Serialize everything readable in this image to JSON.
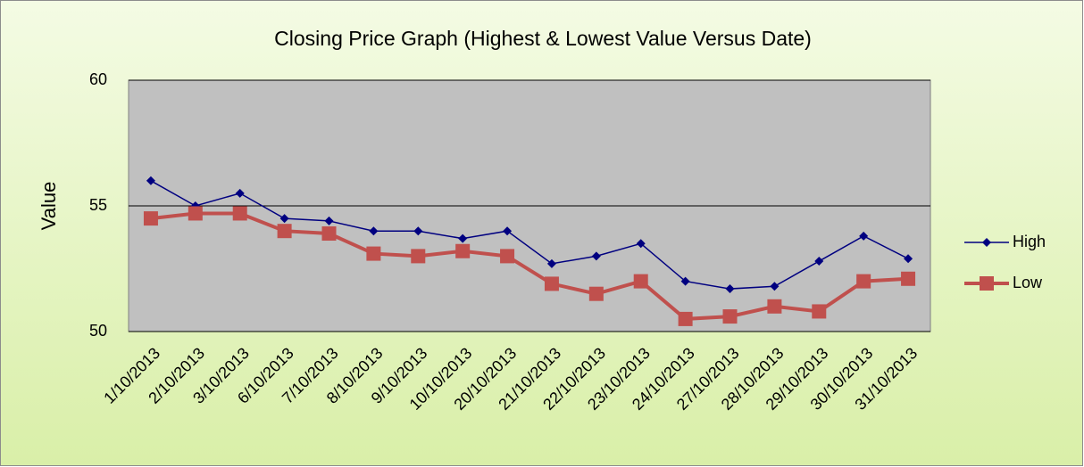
{
  "chart_data": {
    "type": "line",
    "title": "Closing Price Graph (Highest & Lowest Value Versus Date)",
    "y_label": "Value",
    "categories": [
      "1/10/2013",
      "2/10/2013",
      "3/10/2013",
      "6/10/2013",
      "7/10/2013",
      "8/10/2013",
      "9/10/2013",
      "10/10/2013",
      "20/10/2013",
      "21/10/2013",
      "22/10/2013",
      "23/10/2013",
      "24/10/2013",
      "27/10/2013",
      "28/10/2013",
      "29/10/2013",
      "30/10/2013",
      "31/10/2013"
    ],
    "series": [
      {
        "name": "High",
        "color": "#000080",
        "marker": "diamond",
        "values": [
          56,
          55,
          55.5,
          54.5,
          54.4,
          54,
          54,
          53.7,
          54,
          52.7,
          53,
          53.5,
          52,
          51.7,
          51.8,
          52.8,
          53.8,
          52.9
        ]
      },
      {
        "name": "Low",
        "color": "#c0504d",
        "marker": "square",
        "values": [
          54.5,
          54.7,
          54.7,
          54,
          53.9,
          53.1,
          53,
          53.2,
          53,
          51.9,
          51.5,
          52,
          50.5,
          50.6,
          51,
          50.8,
          52,
          52.1
        ]
      }
    ],
    "ylim": [
      50,
      60
    ],
    "yticks": [
      50,
      55,
      60
    ],
    "grid": true,
    "legend": "right"
  }
}
